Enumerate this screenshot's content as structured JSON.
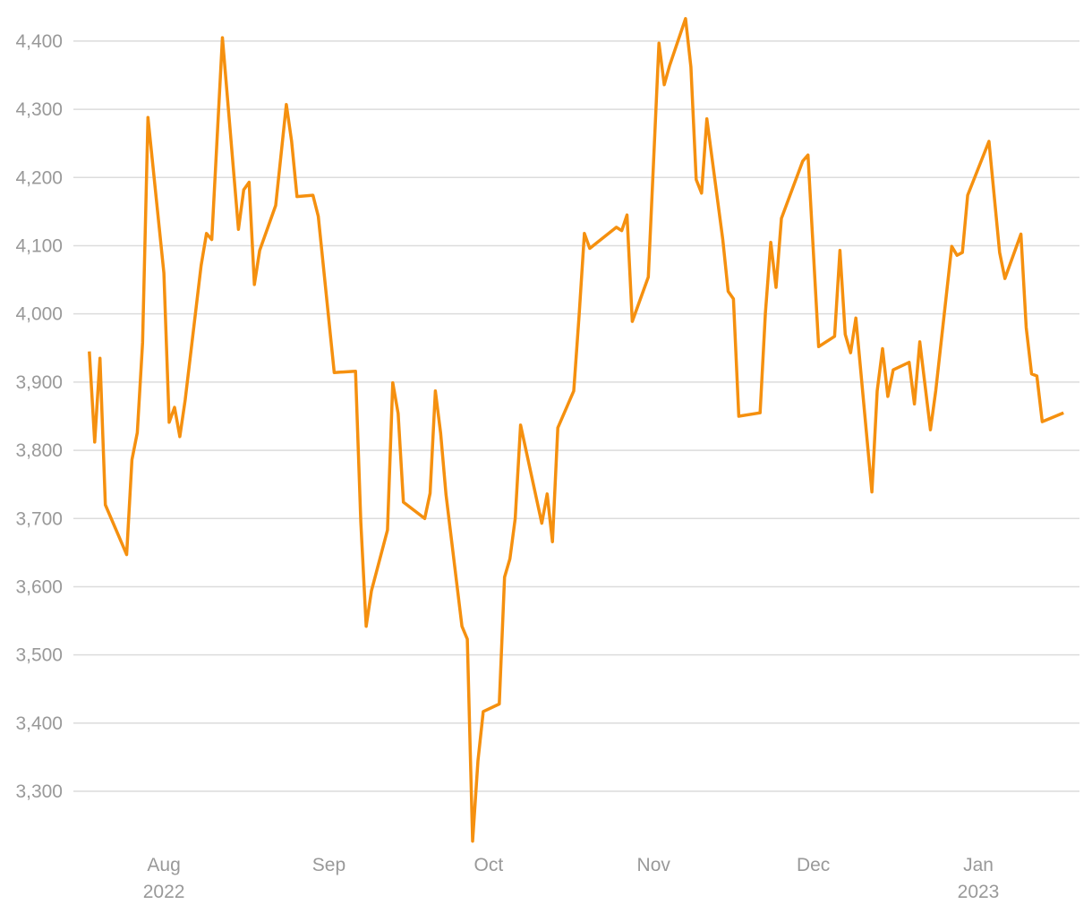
{
  "chart_data": {
    "type": "line",
    "x": [
      "2022-07-18",
      "2022-07-19",
      "2022-07-20",
      "2022-07-21",
      "2022-07-25",
      "2022-07-26",
      "2022-07-27",
      "2022-07-28",
      "2022-07-29",
      "2022-08-01",
      "2022-08-02",
      "2022-08-03",
      "2022-08-04",
      "2022-08-05",
      "2022-08-08",
      "2022-08-09",
      "2022-08-10",
      "2022-08-12",
      "2022-08-15",
      "2022-08-16",
      "2022-08-17",
      "2022-08-18",
      "2022-08-19",
      "2022-08-22",
      "2022-08-24",
      "2022-08-25",
      "2022-08-26",
      "2022-08-29",
      "2022-08-30",
      "2022-09-02",
      "2022-09-06",
      "2022-09-07",
      "2022-09-08",
      "2022-09-09",
      "2022-09-12",
      "2022-09-13",
      "2022-09-14",
      "2022-09-15",
      "2022-09-19",
      "2022-09-20",
      "2022-09-21",
      "2022-09-22",
      "2022-09-23",
      "2022-09-26",
      "2022-09-27",
      "2022-09-28",
      "2022-09-29",
      "2022-09-30",
      "2022-10-03",
      "2022-10-04",
      "2022-10-05",
      "2022-10-06",
      "2022-10-07",
      "2022-10-11",
      "2022-10-12",
      "2022-10-13",
      "2022-10-14",
      "2022-10-17",
      "2022-10-18",
      "2022-10-19",
      "2022-10-20",
      "2022-10-25",
      "2022-10-26",
      "2022-10-27",
      "2022-10-28",
      "2022-10-31",
      "2022-11-01",
      "2022-11-02",
      "2022-11-03",
      "2022-11-04",
      "2022-11-07",
      "2022-11-08",
      "2022-11-09",
      "2022-11-10",
      "2022-11-11",
      "2022-11-14",
      "2022-11-15",
      "2022-11-16",
      "2022-11-17",
      "2022-11-21",
      "2022-11-22",
      "2022-11-23",
      "2022-11-24",
      "2022-11-25",
      "2022-11-29",
      "2022-11-30",
      "2022-12-02",
      "2022-12-05",
      "2022-12-06",
      "2022-12-07",
      "2022-12-08",
      "2022-12-09",
      "2022-12-12",
      "2022-12-13",
      "2022-12-14",
      "2022-12-15",
      "2022-12-16",
      "2022-12-19",
      "2022-12-20",
      "2022-12-21",
      "2022-12-23",
      "2022-12-24",
      "2022-12-27",
      "2022-12-28",
      "2022-12-29",
      "2022-12-30",
      "2023-01-03",
      "2023-01-05",
      "2023-01-06",
      "2023-01-09",
      "2023-01-10",
      "2023-01-11",
      "2023-01-12",
      "2023-01-13",
      "2023-01-17"
    ],
    "series": [
      {
        "color": "#f5900f",
        "values": [
          3945,
          3812,
          3935,
          3720,
          3647,
          3786,
          3826,
          3958,
          4288,
          4060,
          3841,
          3863,
          3820,
          3874,
          4071,
          4118,
          4109,
          4405,
          4124,
          4182,
          4193,
          4043,
          4093,
          4159,
          4307,
          4253,
          4172,
          4174,
          4143,
          3914,
          3916,
          3695,
          3542,
          3594,
          3683,
          3899,
          3854,
          3724,
          3700,
          3737,
          3887,
          3825,
          3735,
          3542,
          3523,
          3227,
          3345,
          3417,
          3428,
          3614,
          3641,
          3700,
          3837,
          3693,
          3736,
          3666,
          3833,
          3887,
          3998,
          4118,
          4096,
          4127,
          4122,
          4145,
          3989,
          4054,
          4224,
          4397,
          4336,
          4364,
          4433,
          4362,
          4197,
          4177,
          4286,
          4109,
          4033,
          4022,
          3850,
          3855,
          4001,
          4105,
          4039,
          4140,
          4224,
          4233,
          3952,
          3967,
          4093,
          3970,
          3943,
          3994,
          3739,
          3887,
          3949,
          3879,
          3918,
          3929,
          3868,
          3959,
          3830,
          3887,
          4099,
          4086,
          4090,
          4174,
          4253,
          4090,
          4052,
          4117,
          3980,
          3912,
          3909,
          3842,
          3855
        ]
      }
    ],
    "xlim": [
      "2022-07-15",
      "2023-01-20"
    ],
    "xticks": [
      {
        "value": "2022-08-01",
        "label": "Aug"
      },
      {
        "value": "2022-09-01",
        "label": "Sep"
      },
      {
        "value": "2022-10-01",
        "label": "Oct"
      },
      {
        "value": "2022-11-01",
        "label": "Nov"
      },
      {
        "value": "2022-12-01",
        "label": "Dec"
      },
      {
        "value": "2023-01-01",
        "label": "Jan"
      }
    ],
    "x_tick_years": [
      {
        "value": "2022-08-01",
        "label": "2022"
      },
      {
        "value": "2023-01-01",
        "label": "2023"
      }
    ],
    "ylim": [
      3220,
      4434
    ],
    "yticks": [
      {
        "value": 3300,
        "label": "3,300"
      },
      {
        "value": 3400,
        "label": "3,400"
      },
      {
        "value": 3500,
        "label": "3,500"
      },
      {
        "value": 3600,
        "label": "3,600"
      },
      {
        "value": 3700,
        "label": "3,700"
      },
      {
        "value": 3800,
        "label": "3,800"
      },
      {
        "value": 3900,
        "label": "3,900"
      },
      {
        "value": 4000,
        "label": "4,000"
      },
      {
        "value": 4100,
        "label": "4,100"
      },
      {
        "value": 4200,
        "label": "4,200"
      },
      {
        "value": 4300,
        "label": "4,300"
      },
      {
        "value": 4400,
        "label": "4,400"
      }
    ],
    "grid": true
  }
}
